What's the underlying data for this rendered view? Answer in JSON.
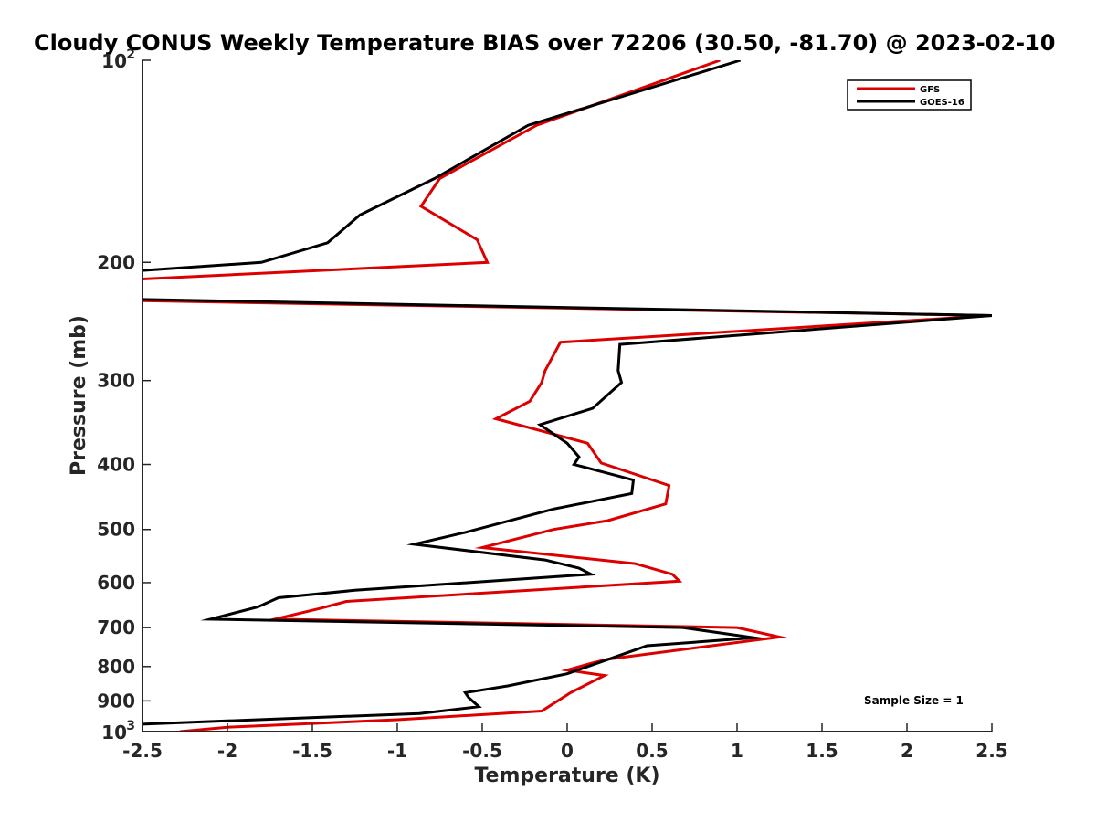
{
  "chart_data": {
    "type": "line",
    "title": "Cloudy CONUS Weekly Temperature BIAS over 72206 (30.50, -81.70) @ 2023-02-10",
    "xlabel": "Temperature (K)",
    "ylabel": "Pressure (mb)",
    "xlim": [
      -2.5,
      2.5
    ],
    "ylim": [
      100,
      1000
    ],
    "y_scale": "log",
    "y_reversed": true,
    "grid": false,
    "legend_position": "top-right",
    "x_ticks": [
      -2.5,
      -2,
      -1.5,
      -1,
      -0.5,
      0,
      0.5,
      1,
      1.5,
      2,
      2.5
    ],
    "x_tick_labels": [
      "-2.5",
      "-2",
      "-1.5",
      "-1",
      "-0.5",
      "0",
      "0.5",
      "1",
      "1.5",
      "2",
      "2.5"
    ],
    "y_ticks": [
      100,
      200,
      300,
      400,
      500,
      600,
      700,
      800,
      900,
      1000
    ],
    "y_tick_labels": [
      {
        "base": "10",
        "exp": "2"
      },
      {
        "base": "200",
        "exp": ""
      },
      {
        "base": "300",
        "exp": ""
      },
      {
        "base": "400",
        "exp": ""
      },
      {
        "base": "500",
        "exp": ""
      },
      {
        "base": "600",
        "exp": ""
      },
      {
        "base": "700",
        "exp": ""
      },
      {
        "base": "800",
        "exp": ""
      },
      {
        "base": "900",
        "exp": ""
      },
      {
        "base": "10",
        "exp": "3"
      }
    ],
    "annotation": "Sample Size = 1",
    "series": [
      {
        "name": "GFS",
        "color": "#dd0000",
        "points": [
          [
            0.9,
            100
          ],
          [
            -0.18,
            125
          ],
          [
            -0.75,
            150
          ],
          [
            -0.86,
            165
          ],
          [
            -0.53,
            185
          ],
          [
            -0.47,
            200
          ],
          [
            -2.55,
            212
          ],
          [
            -2.55,
            228
          ],
          [
            2.5,
            240
          ],
          [
            -0.04,
            263
          ],
          [
            -0.13,
            290
          ],
          [
            -0.15,
            302
          ],
          [
            -0.22,
            322
          ],
          [
            -0.42,
            342
          ],
          [
            0.12,
            372
          ],
          [
            0.2,
            398
          ],
          [
            0.6,
            430
          ],
          [
            0.58,
            458
          ],
          [
            0.24,
            485
          ],
          [
            -0.08,
            500
          ],
          [
            -0.5,
            532
          ],
          [
            0.4,
            562
          ],
          [
            0.62,
            583
          ],
          [
            0.66,
            597
          ],
          [
            -1.3,
            640
          ],
          [
            -1.45,
            655
          ],
          [
            -1.72,
            680
          ],
          [
            1.0,
            700
          ],
          [
            1.25,
            723
          ],
          [
            0.24,
            780
          ],
          [
            0.15,
            790
          ],
          [
            0.0,
            810
          ],
          [
            0.22,
            825
          ],
          [
            0.02,
            875
          ],
          [
            -0.15,
            932
          ],
          [
            -1.0,
            960
          ],
          [
            -2.0,
            985
          ],
          [
            -2.28,
            1000
          ]
        ]
      },
      {
        "name": "GOES-16",
        "color": "#000000",
        "points": [
          [
            1.02,
            100
          ],
          [
            -0.23,
            125
          ],
          [
            -0.78,
            150
          ],
          [
            -1.22,
            170
          ],
          [
            -1.41,
            187
          ],
          [
            -1.8,
            200
          ],
          [
            -2.55,
            206
          ],
          [
            -2.55,
            227
          ],
          [
            2.5,
            240
          ],
          [
            0.31,
            265
          ],
          [
            0.3,
            290
          ],
          [
            0.32,
            302
          ],
          [
            0.15,
            330
          ],
          [
            -0.16,
            349
          ],
          [
            0.0,
            372
          ],
          [
            0.07,
            390
          ],
          [
            0.04,
            400
          ],
          [
            0.39,
            422
          ],
          [
            0.38,
            442
          ],
          [
            -0.08,
            466
          ],
          [
            -0.6,
            505
          ],
          [
            -0.9,
            526
          ],
          [
            -0.13,
            555
          ],
          [
            0.07,
            571
          ],
          [
            0.14,
            583
          ],
          [
            -1.25,
            616
          ],
          [
            -1.7,
            632
          ],
          [
            -1.82,
            652
          ],
          [
            -2.1,
            680
          ],
          [
            0.68,
            700
          ],
          [
            1.1,
            725
          ],
          [
            0.47,
            745
          ],
          [
            0.36,
            762
          ],
          [
            0.0,
            820
          ],
          [
            -0.35,
            855
          ],
          [
            -0.6,
            875
          ],
          [
            -0.58,
            890
          ],
          [
            -0.52,
            918
          ],
          [
            -0.87,
            940
          ],
          [
            -2.55,
            976
          ]
        ]
      }
    ]
  }
}
